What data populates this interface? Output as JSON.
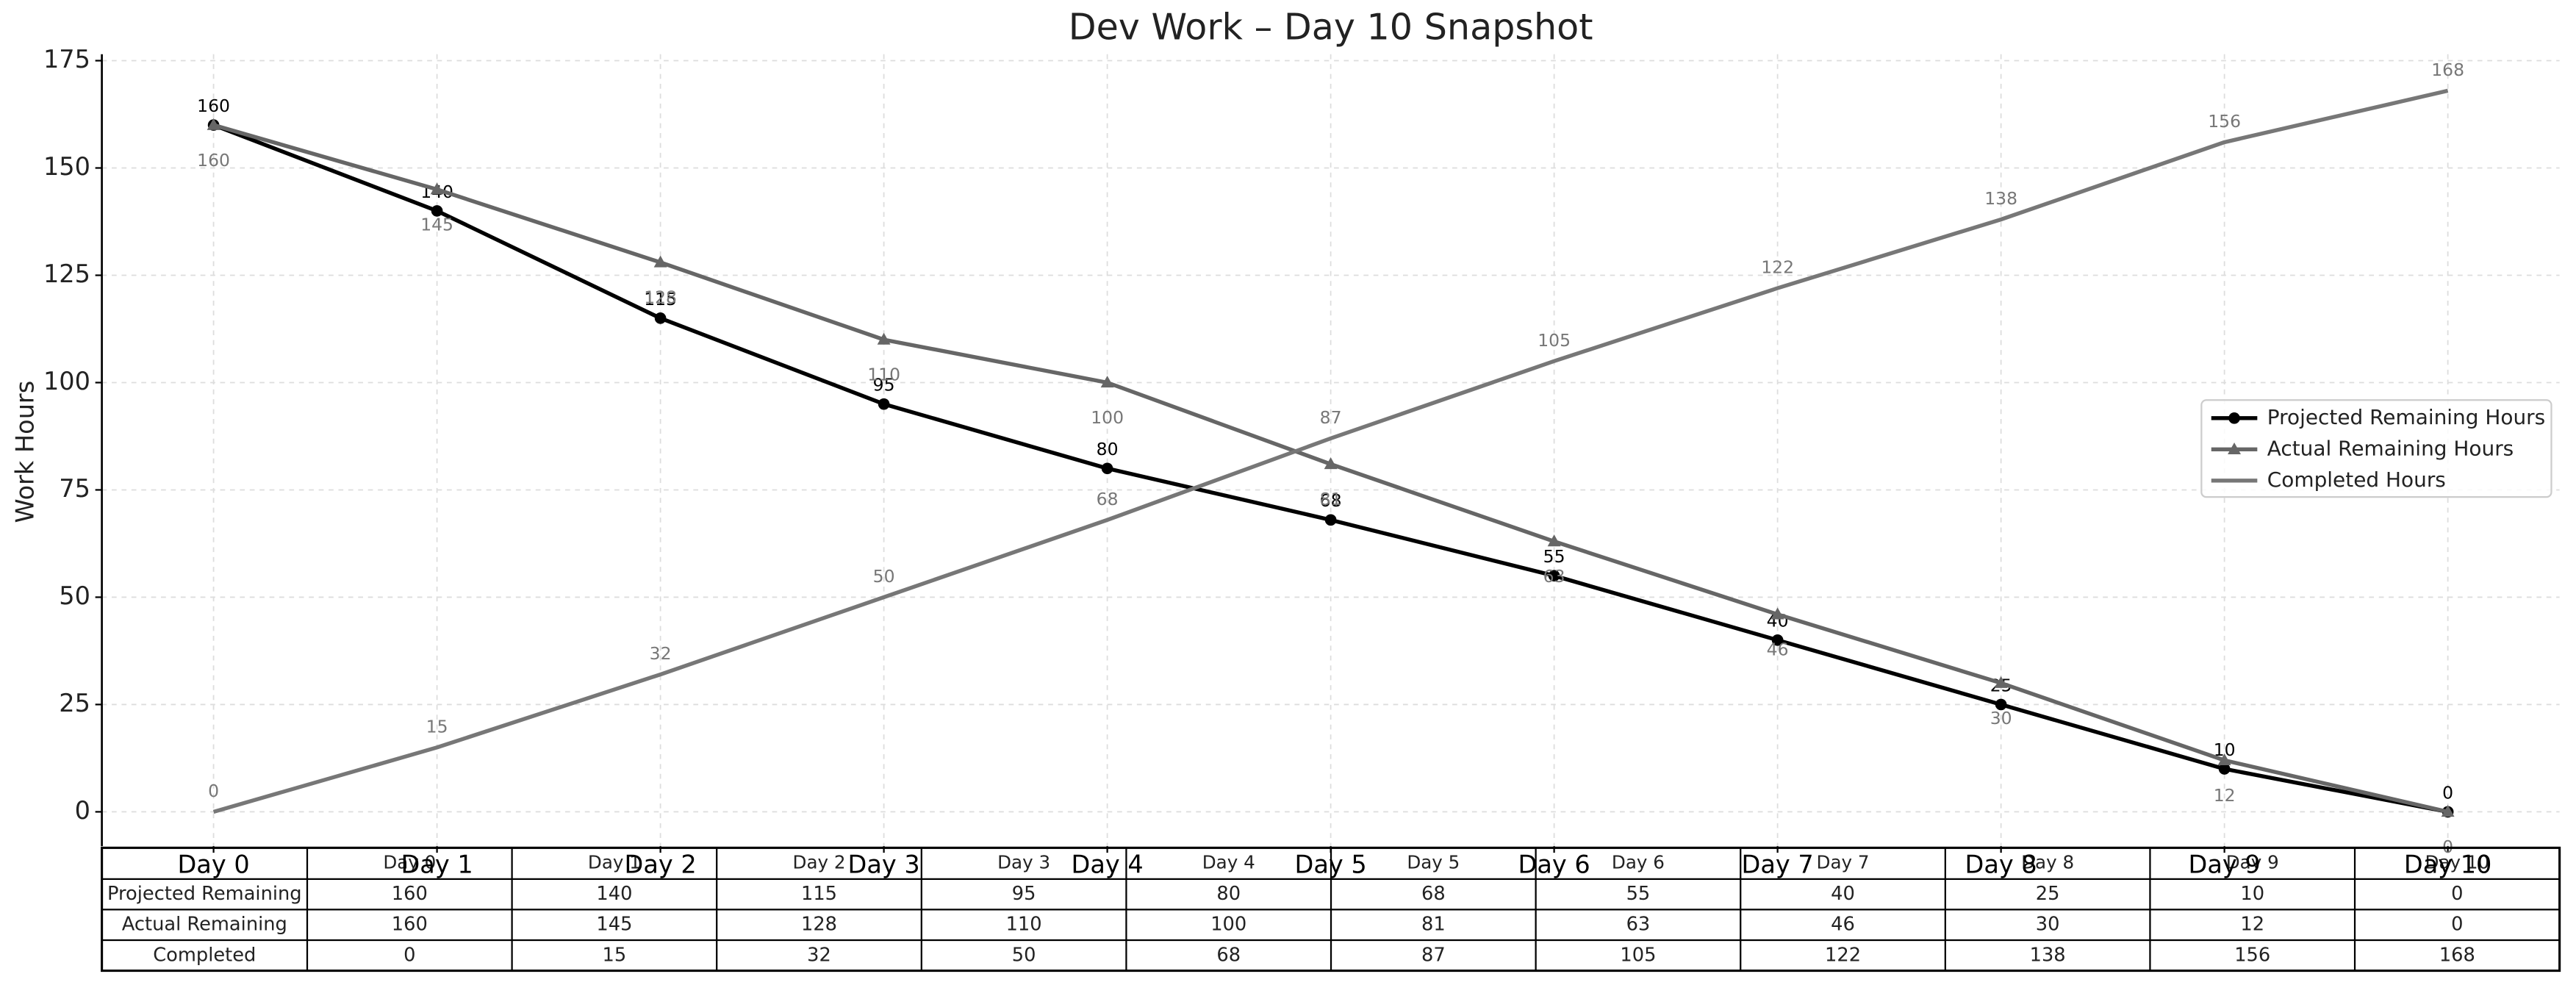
{
  "chart_data": {
    "type": "line",
    "title": "Dev Work – Day 10 Snapshot",
    "ylabel": "Work Hours",
    "categories": [
      "Day 0",
      "Day 1",
      "Day 2",
      "Day 3",
      "Day 4",
      "Day 5",
      "Day 6",
      "Day 7",
      "Day 8",
      "Day 9",
      "Day 10"
    ],
    "series": [
      {
        "name": "Projected Remaining Hours",
        "color": "#000000",
        "marker": "circle",
        "values": [
          160,
          140,
          115,
          95,
          80,
          68,
          55,
          40,
          25,
          10,
          0
        ]
      },
      {
        "name": "Actual Remaining Hours",
        "color": "#666666",
        "marker": "triangle",
        "values": [
          160,
          145,
          128,
          110,
          100,
          81,
          63,
          46,
          30,
          12,
          0
        ]
      },
      {
        "name": "Completed Hours",
        "color": "#777777",
        "marker": "none",
        "values": [
          0,
          15,
          32,
          50,
          68,
          87,
          105,
          122,
          138,
          156,
          168
        ]
      }
    ],
    "ylim": [
      -8,
      176.5
    ],
    "yticks": [
      0,
      25,
      50,
      75,
      100,
      125,
      150,
      175
    ],
    "grid": true,
    "legend": "center right",
    "table_row_labels": [
      "Projected Remaining",
      "Actual Remaining",
      "Completed"
    ]
  }
}
